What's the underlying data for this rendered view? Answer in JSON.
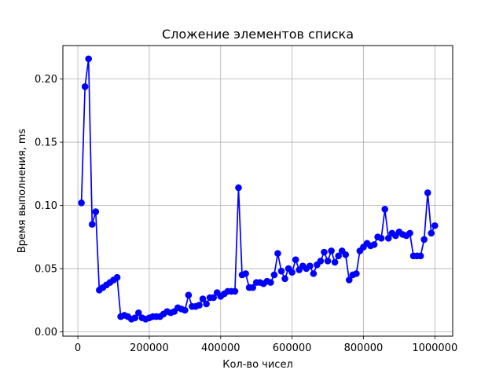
{
  "chart_data": {
    "type": "line",
    "title": "Сложение элементов списка",
    "xlabel": "Кол-во чисел",
    "ylabel": "Время выполнения, ms",
    "xlim": [
      -42000,
      1050000
    ],
    "ylim": [
      -0.0035,
      0.2265
    ],
    "x_ticks": [
      0,
      200000,
      400000,
      600000,
      800000,
      1000000
    ],
    "x_tick_labels": [
      "0",
      "200000",
      "400000",
      "600000",
      "800000",
      "1000000"
    ],
    "y_ticks": [
      0.0,
      0.05,
      0.1,
      0.15,
      0.2
    ],
    "y_tick_labels": [
      "0.00",
      "0.05",
      "0.10",
      "0.15",
      "0.20"
    ],
    "grid": true,
    "line_color": "#0000ff",
    "marker": "circle",
    "series": [
      {
        "x": [
          10000,
          20000,
          30000,
          40000,
          50000,
          60000,
          70000,
          80000,
          90000,
          100000,
          110000,
          120000,
          130000,
          140000,
          150000,
          160000,
          170000,
          180000,
          190000,
          200000,
          210000,
          220000,
          230000,
          240000,
          250000,
          260000,
          270000,
          280000,
          290000,
          300000,
          310000,
          320000,
          330000,
          340000,
          350000,
          360000,
          370000,
          380000,
          390000,
          400000,
          410000,
          420000,
          430000,
          440000,
          450000,
          460000,
          470000,
          480000,
          490000,
          500000,
          510000,
          520000,
          530000,
          540000,
          550000,
          560000,
          570000,
          580000,
          590000,
          600000,
          610000,
          620000,
          630000,
          640000,
          650000,
          660000,
          670000,
          680000,
          690000,
          700000,
          710000,
          720000,
          730000,
          740000,
          750000,
          760000,
          770000,
          780000,
          790000,
          800000,
          810000,
          820000,
          830000,
          840000,
          850000,
          860000,
          870000,
          880000,
          890000,
          900000,
          910000,
          920000,
          930000,
          940000,
          950000,
          960000,
          970000,
          980000,
          990000,
          1000000
        ],
        "values": [
          0.102,
          0.194,
          0.216,
          0.085,
          0.095,
          0.033,
          0.035,
          0.037,
          0.039,
          0.041,
          0.043,
          0.012,
          0.013,
          0.012,
          0.01,
          0.011,
          0.015,
          0.011,
          0.01,
          0.011,
          0.012,
          0.012,
          0.012,
          0.014,
          0.016,
          0.015,
          0.016,
          0.019,
          0.018,
          0.017,
          0.029,
          0.02,
          0.02,
          0.021,
          0.026,
          0.022,
          0.027,
          0.027,
          0.031,
          0.028,
          0.03,
          0.032,
          0.032,
          0.032,
          0.114,
          0.045,
          0.046,
          0.035,
          0.035,
          0.039,
          0.039,
          0.038,
          0.04,
          0.039,
          0.045,
          0.062,
          0.048,
          0.042,
          0.05,
          0.047,
          0.057,
          0.049,
          0.052,
          0.05,
          0.052,
          0.046,
          0.053,
          0.056,
          0.063,
          0.056,
          0.064,
          0.055,
          0.06,
          0.064,
          0.061,
          0.041,
          0.045,
          0.046,
          0.064,
          0.067,
          0.07,
          0.068,
          0.069,
          0.075,
          0.074,
          0.097,
          0.074,
          0.078,
          0.076,
          0.079,
          0.077,
          0.076,
          0.078,
          0.06,
          0.06,
          0.06,
          0.073,
          0.11,
          0.078,
          0.084
        ]
      }
    ]
  }
}
